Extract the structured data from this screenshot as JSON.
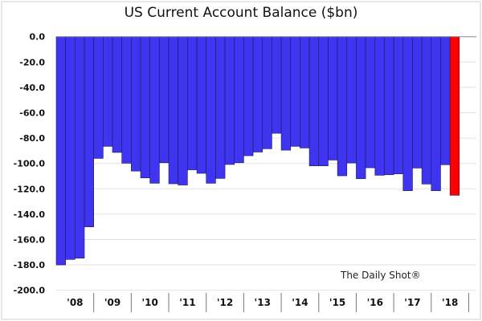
{
  "chart_data": {
    "type": "bar",
    "title": "US Current Account Balance ($bn)",
    "watermark": "The Daily Shot®",
    "xlabel": "",
    "ylabel": "",
    "ylim": [
      -200,
      0
    ],
    "yticks": [
      "0.0",
      "-20.0",
      "-40.0",
      "-60.0",
      "-80.0",
      "-100.0",
      "-120.0",
      "-140.0",
      "-160.0",
      "-180.0",
      "-200.0"
    ],
    "grid": true,
    "year_labels": [
      "'08",
      "'09",
      "'10",
      "'11",
      "'12",
      "'13",
      "'14",
      "'15",
      "'16",
      "'17",
      "'18"
    ],
    "bars_per_year": 4,
    "values": [
      -180,
      -175.7,
      -174.7,
      -150,
      -96,
      -86.5,
      -91.3,
      -99.8,
      -106,
      -111.4,
      -115.6,
      -99.4,
      -116,
      -117,
      -105,
      -107.8,
      -115.6,
      -111.8,
      -100.8,
      -99.4,
      -93.9,
      -91,
      -88.4,
      -76.2,
      -89.5,
      -86.5,
      -87.8,
      -101.9,
      -101.9,
      -97.3,
      -109.7,
      -99.6,
      -112,
      -103.4,
      -109.3,
      -108.9,
      -108.2,
      -121.5,
      -103.6,
      -116.2,
      -121.5,
      -101,
      -125.1
    ],
    "colors": {
      "bar": "#3f35f0",
      "latest": "#ff0000",
      "grid": "#e2e2e2"
    }
  }
}
